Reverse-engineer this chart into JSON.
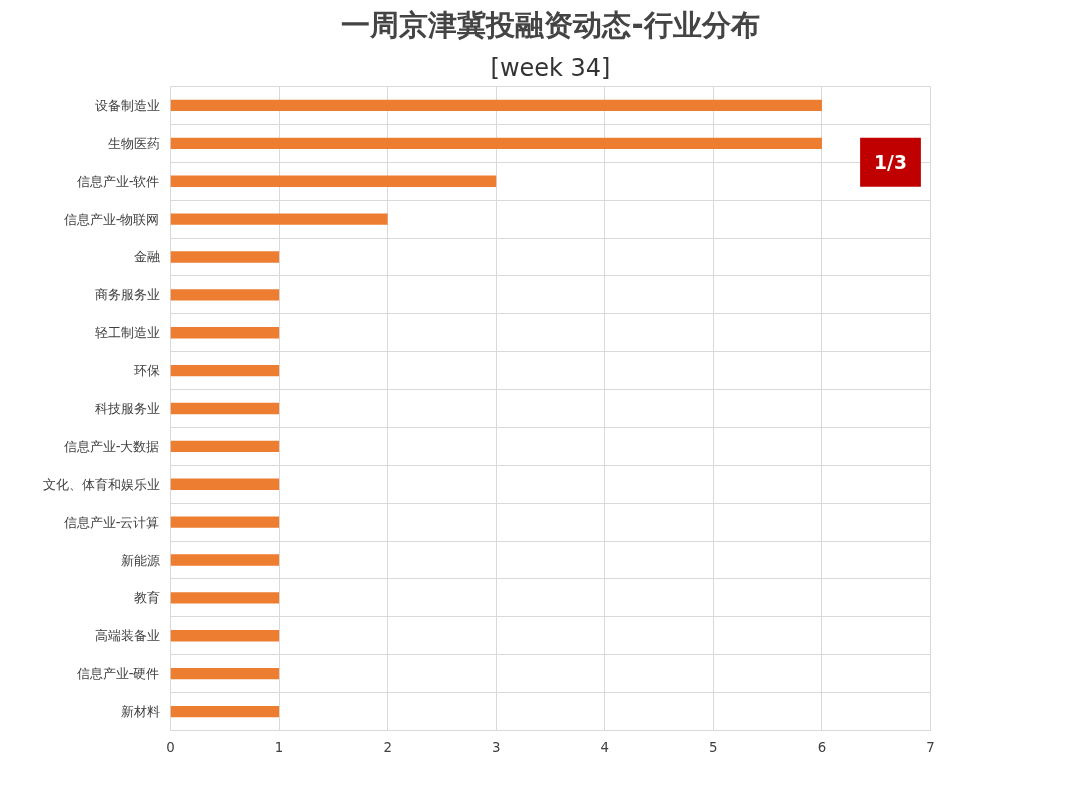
{
  "chart_data": {
    "type": "bar",
    "orientation": "horizontal",
    "title": "一周京津冀投融资动态-行业分布",
    "subtitle": "[week 34]",
    "categories": [
      "设备制造业",
      "生物医药",
      "信息产业-软件",
      "信息产业-物联网",
      "金融",
      "商务服务业",
      "轻工制造业",
      "环保",
      "科技服务业",
      "信息产业-大数据",
      "文化、体育和娱乐业",
      "信息产业-云计算",
      "新能源",
      "教育",
      "高端装备业",
      "信息产业-硬件",
      "新材料"
    ],
    "values": [
      6,
      6,
      3,
      2,
      1,
      1,
      1,
      1,
      1,
      1,
      1,
      1,
      1,
      1,
      1,
      1,
      1
    ],
    "color": "#ed7d31",
    "xlim": [
      0,
      7
    ],
    "xticks": [
      0,
      1,
      2,
      3,
      4,
      5,
      6,
      7
    ],
    "grid": true,
    "annotations": [
      "1/3"
    ]
  }
}
